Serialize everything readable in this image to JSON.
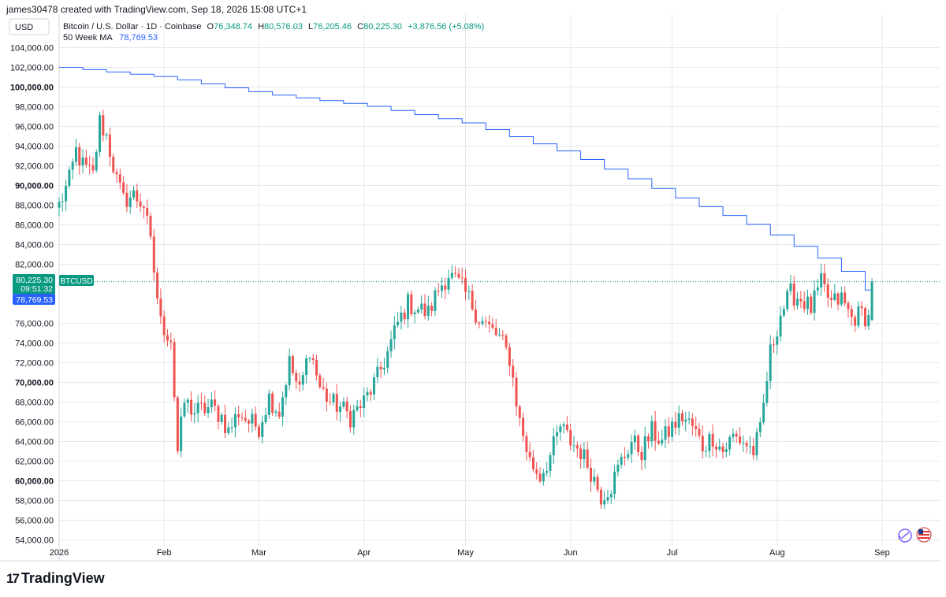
{
  "header": {
    "created_by": "james30478 created with TradingView.com, Sep 18, 2026 15:08 UTC+1"
  },
  "brand": {
    "logo_text": "TradingView",
    "logo_mark": "17"
  },
  "colors": {
    "up": "#26a69a",
    "down": "#ef5350",
    "ma": "#2962ff",
    "price_badge": "#089981",
    "ma_badge": "#2962ff",
    "grid": "#e6e8ec",
    "axis_text": "#131722"
  },
  "chart_data": {
    "type": "candlestick",
    "currency_button": "USD",
    "title": "Bitcoin / U.S. Dollar · 1D · Coinbase",
    "ohlc_labels": {
      "o": "O",
      "h": "H",
      "l": "L",
      "c": "C"
    },
    "ohlc": {
      "open": "76,348.74",
      "high": "80,576.03",
      "low": "76,205.46",
      "close": "80,225.30",
      "change": "+3,876.56 (+5.08%)"
    },
    "indicator": {
      "name": "50 Week MA",
      "value": "78,769.53"
    },
    "price_badge": {
      "value": "80,225.30",
      "countdown": "09:51:32",
      "symbol": "BTCUSD"
    },
    "ma_badge": {
      "value": "78,769.53"
    },
    "y_ticks": [
      {
        "v": 104000,
        "label": "104,000.00",
        "bold": false
      },
      {
        "v": 102000,
        "label": "102,000.00",
        "bold": false
      },
      {
        "v": 100000,
        "label": "100,000.00",
        "bold": true
      },
      {
        "v": 98000,
        "label": "98,000.00",
        "bold": false
      },
      {
        "v": 96000,
        "label": "96,000.00",
        "bold": false
      },
      {
        "v": 94000,
        "label": "94,000.00",
        "bold": false
      },
      {
        "v": 92000,
        "label": "92,000.00",
        "bold": false
      },
      {
        "v": 90000,
        "label": "90,000.00",
        "bold": true
      },
      {
        "v": 88000,
        "label": "88,000.00",
        "bold": false
      },
      {
        "v": 86000,
        "label": "86,000.00",
        "bold": false
      },
      {
        "v": 84000,
        "label": "84,000.00",
        "bold": false
      },
      {
        "v": 82000,
        "label": "82,000.00",
        "bold": false
      },
      {
        "v": 76000,
        "label": "76,000.00",
        "bold": false
      },
      {
        "v": 74000,
        "label": "74,000.00",
        "bold": false
      },
      {
        "v": 72000,
        "label": "72,000.00",
        "bold": false
      },
      {
        "v": 70000,
        "label": "70,000.00",
        "bold": true
      },
      {
        "v": 68000,
        "label": "68,000.00",
        "bold": false
      },
      {
        "v": 66000,
        "label": "66,000.00",
        "bold": false
      },
      {
        "v": 64000,
        "label": "64,000.00",
        "bold": false
      },
      {
        "v": 62000,
        "label": "62,000.00",
        "bold": false
      },
      {
        "v": 60000,
        "label": "60,000.00",
        "bold": true
      },
      {
        "v": 58000,
        "label": "58,000.00",
        "bold": false
      },
      {
        "v": 56000,
        "label": "56,000.00",
        "bold": false
      },
      {
        "v": 54000,
        "label": "54,000.00",
        "bold": false
      }
    ],
    "y_range": [
      53400,
      105000
    ],
    "x_ticks": [
      {
        "day": 0,
        "label": "2026"
      },
      {
        "day": 31,
        "label": "Feb"
      },
      {
        "day": 59,
        "label": "Mar"
      },
      {
        "day": 90,
        "label": "Apr"
      },
      {
        "day": 120,
        "label": "May"
      },
      {
        "day": 151,
        "label": "Jun"
      },
      {
        "day": 181,
        "label": "Jul"
      },
      {
        "day": 212,
        "label": "Aug"
      },
      {
        "day": 243,
        "label": "Sep"
      }
    ],
    "x_range_days": [
      0,
      260
    ],
    "candle_anchors": [
      [
        0,
        88000
      ],
      [
        3,
        90500
      ],
      [
        5,
        93500
      ],
      [
        7,
        92000
      ],
      [
        10,
        91000
      ],
      [
        12,
        96500
      ],
      [
        14,
        95000
      ],
      [
        17,
        90500
      ],
      [
        19,
        88500
      ],
      [
        22,
        89000
      ],
      [
        25,
        88000
      ],
      [
        27,
        84000
      ],
      [
        30,
        76000
      ],
      [
        33,
        74500
      ],
      [
        35,
        63000
      ],
      [
        37,
        68000
      ],
      [
        40,
        67000
      ],
      [
        45,
        67500
      ],
      [
        48,
        66500
      ],
      [
        50,
        65000
      ],
      [
        53,
        67000
      ],
      [
        56,
        66000
      ],
      [
        59,
        65500
      ],
      [
        62,
        68500
      ],
      [
        65,
        67000
      ],
      [
        68,
        72000
      ],
      [
        71,
        69000
      ],
      [
        74,
        73500
      ],
      [
        77,
        69500
      ],
      [
        80,
        68000
      ],
      [
        83,
        67500
      ],
      [
        86,
        66500
      ],
      [
        90,
        68000
      ],
      [
        94,
        70500
      ],
      [
        97,
        73000
      ],
      [
        100,
        76000
      ],
      [
        103,
        78000
      ],
      [
        106,
        77500
      ],
      [
        109,
        77000
      ],
      [
        112,
        79500
      ],
      [
        115,
        81000
      ],
      [
        118,
        80000
      ],
      [
        121,
        78500
      ],
      [
        124,
        76500
      ],
      [
        127,
        75500
      ],
      [
        130,
        74500
      ],
      [
        133,
        72500
      ],
      [
        136,
        66000
      ],
      [
        139,
        62000
      ],
      [
        142,
        60500
      ],
      [
        145,
        62500
      ],
      [
        148,
        65500
      ],
      [
        151,
        64000
      ],
      [
        154,
        63000
      ],
      [
        157,
        61000
      ],
      [
        160,
        58500
      ],
      [
        163,
        59500
      ],
      [
        166,
        62000
      ],
      [
        169,
        64000
      ],
      [
        172,
        63000
      ],
      [
        175,
        65000
      ],
      [
        178,
        64000
      ],
      [
        181,
        65500
      ],
      [
        184,
        66500
      ],
      [
        187,
        65500
      ],
      [
        190,
        63500
      ],
      [
        193,
        64500
      ],
      [
        196,
        63000
      ],
      [
        199,
        64500
      ],
      [
        202,
        64000
      ],
      [
        205,
        63000
      ],
      [
        207,
        65000
      ],
      [
        210,
        73000
      ],
      [
        213,
        77000
      ],
      [
        216,
        79000
      ],
      [
        219,
        78500
      ],
      [
        222,
        77500
      ],
      [
        225,
        80000
      ],
      [
        228,
        78000
      ],
      [
        231,
        78500
      ],
      [
        234,
        76500
      ],
      [
        237,
        77000
      ],
      [
        239,
        76500
      ],
      [
        240,
        80225.3
      ]
    ],
    "ma_anchors": [
      [
        0,
        102000
      ],
      [
        30,
        101000
      ],
      [
        60,
        99300
      ],
      [
        90,
        98100
      ],
      [
        120,
        96300
      ],
      [
        150,
        93200
      ],
      [
        180,
        89000
      ],
      [
        205,
        85800
      ],
      [
        222,
        83000
      ],
      [
        233,
        80900
      ],
      [
        240,
        78769.53
      ]
    ],
    "last_price": 80225.3
  }
}
